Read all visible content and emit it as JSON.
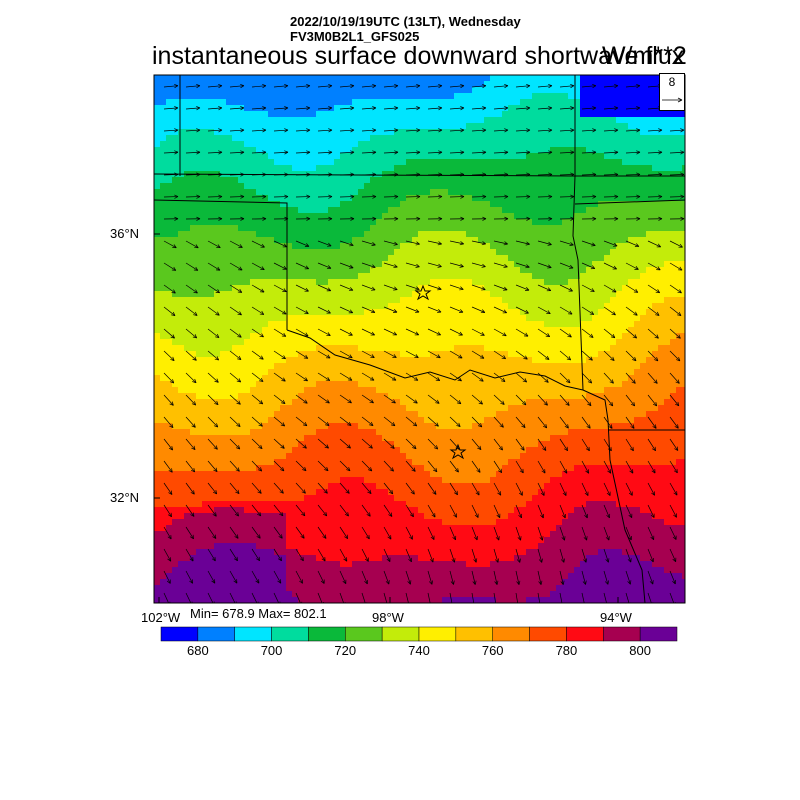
{
  "header": {
    "line1": "2022/10/19/19UTC (13LT), Wednesday",
    "line2": "FV3M0B2L1_GFS025"
  },
  "title": "instantaneous surface downward shortwave flux",
  "units": "W/m**2",
  "stats": {
    "text": "Min= 678.9 Max= 802.1",
    "min": 678.9,
    "max": 802.1
  },
  "axes": {
    "lat_labels": [
      "36°N",
      "32°N"
    ],
    "lon_labels": [
      "102°W",
      "98°W",
      "94°W"
    ]
  },
  "reference_vector": {
    "label": "8"
  },
  "colorbar": {
    "colors": [
      "#0000ff",
      "#0080ff",
      "#00e5ff",
      "#00dc9e",
      "#0ab93a",
      "#5ac81e",
      "#c3ec0a",
      "#ffef00",
      "#ffc000",
      "#ff8a00",
      "#ff4a00",
      "#ff0a14",
      "#a60050",
      "#6a0096"
    ],
    "labels": [
      "680",
      "700",
      "720",
      "740",
      "760",
      "780",
      "800"
    ]
  },
  "markers": {
    "stars": 2,
    "icon": "star-icon"
  }
}
